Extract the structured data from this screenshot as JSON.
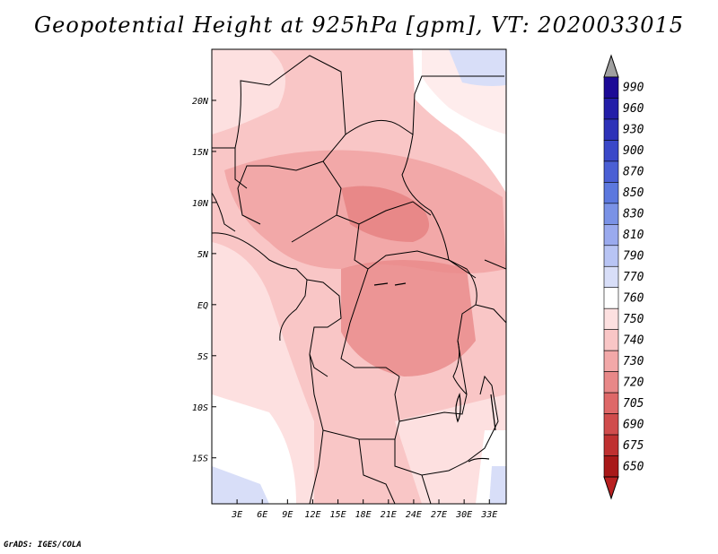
{
  "title": "Geopotential Height at 925hPa [gpm], VT: 2020033015",
  "credit": "GrADS: IGES/COLA",
  "map": {
    "lat_labels": [
      "20N",
      "15N",
      "10N",
      "5N",
      "EQ",
      "5S",
      "10S",
      "15S"
    ],
    "lat_values": [
      20,
      15,
      10,
      5,
      0,
      -5,
      -10,
      -15
    ],
    "lon_labels": [
      "3E",
      "6E",
      "9E",
      "12E",
      "15E",
      "18E",
      "21E",
      "24E",
      "27E",
      "30E",
      "33E"
    ],
    "lon_values": [
      3,
      6,
      9,
      12,
      15,
      18,
      21,
      24,
      27,
      30,
      33
    ],
    "extent": {
      "lon_min": 0,
      "lon_max": 35,
      "lat_min": -19.5,
      "lat_max": 25
    }
  },
  "colorbar": {
    "levels": [
      "990",
      "960",
      "930",
      "900",
      "870",
      "850",
      "830",
      "810",
      "790",
      "770",
      "760",
      "750",
      "740",
      "730",
      "720",
      "705",
      "690",
      "675",
      "650"
    ],
    "colors": [
      "#1c0a96",
      "#231ea8",
      "#2d32b8",
      "#3a48c8",
      "#4a5fd4",
      "#5c78de",
      "#7a92e6",
      "#9aaaee",
      "#b8c4f4",
      "#d8def8",
      "#ffffff",
      "#fde0e0",
      "#f9c6c6",
      "#f2a8a8",
      "#e88888",
      "#de6868",
      "#d04c4c",
      "#bf3030",
      "#a81818"
    ],
    "top_cap_color": "#a0a0a0",
    "bottom_cap_color": "#b82020"
  }
}
